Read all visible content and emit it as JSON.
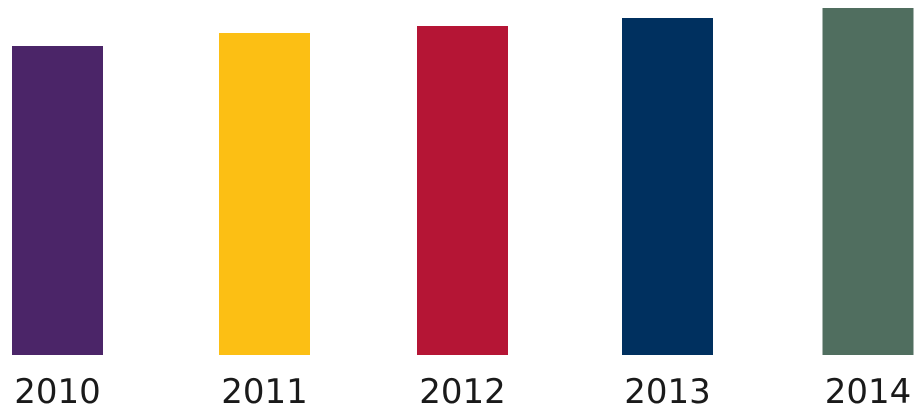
{
  "chart_data": {
    "type": "bar",
    "categories": [
      "2010",
      "2011",
      "2012",
      "2013",
      "2014"
    ],
    "values": [
      309,
      322,
      329,
      337,
      347
    ],
    "colors": [
      "#4b2568",
      "#fcbf14",
      "#b51535",
      "#00305f",
      "#506e5f"
    ],
    "ylim": [
      0,
      355
    ],
    "title": "",
    "xlabel": "",
    "ylabel": "",
    "grid": false,
    "legend": "none"
  }
}
